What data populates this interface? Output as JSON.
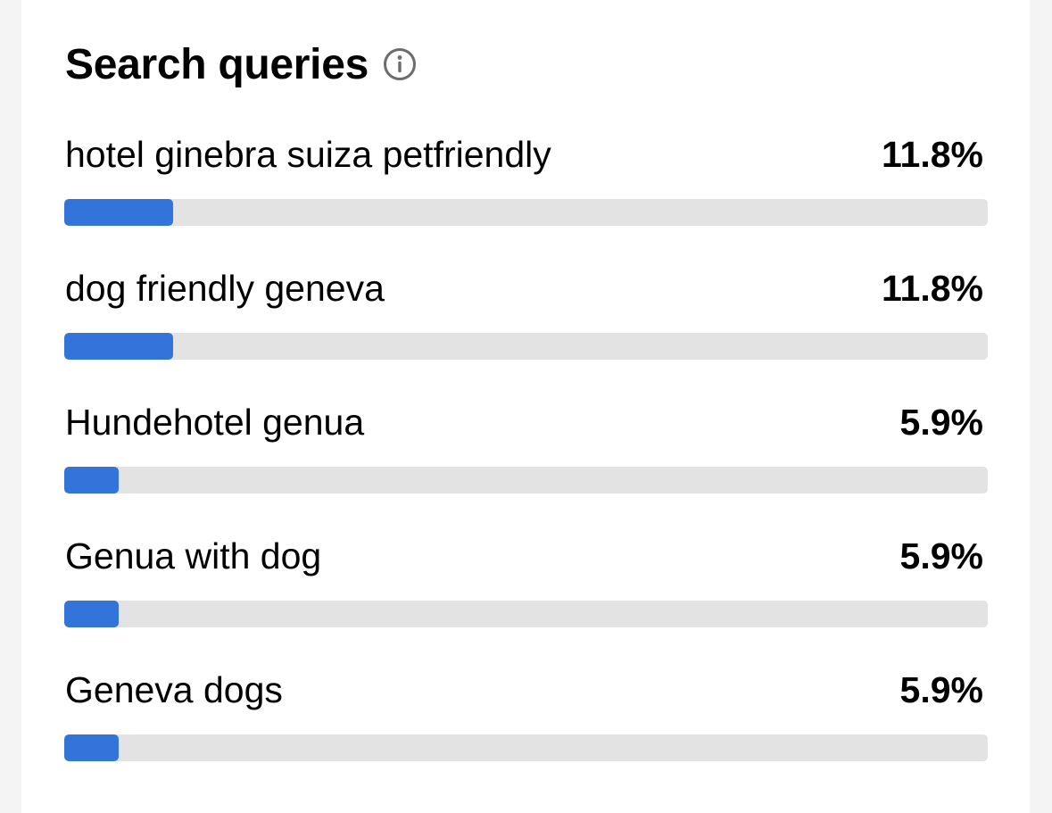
{
  "panel": {
    "title": "Search queries",
    "info_icon": "info-circle-icon"
  },
  "colors": {
    "bar_fill": "#3274d9",
    "bar_track": "#e3e3e3"
  },
  "queries": [
    {
      "label": "hotel ginebra suiza petfriendly",
      "percent": "11.8%",
      "value": 11.8
    },
    {
      "label": "dog friendly geneva",
      "percent": "11.8%",
      "value": 11.8
    },
    {
      "label": "Hundehotel genua",
      "percent": "5.9%",
      "value": 5.9
    },
    {
      "label": "Genua with dog",
      "percent": "5.9%",
      "value": 5.9
    },
    {
      "label": "Geneva dogs",
      "percent": "5.9%",
      "value": 5.9
    }
  ]
}
